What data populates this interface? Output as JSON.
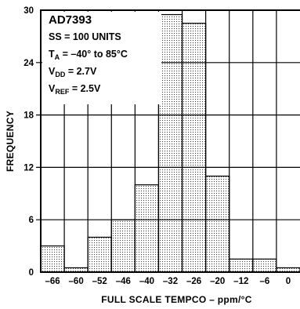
{
  "chart_data": {
    "type": "bar",
    "ylabel": "FREQUENCY",
    "xlabel": "FULL SCALE TEMPCO – ppm/°C",
    "ylim": [
      0,
      30
    ],
    "yticks": [
      0,
      6,
      12,
      18,
      24,
      30
    ],
    "xticks": [
      "–66",
      "–60",
      "–52",
      "–46",
      "–40",
      "–32",
      "–26",
      "–20",
      "–12",
      "–6",
      "0"
    ],
    "values": [
      3,
      0.5,
      4,
      6,
      10,
      29.5,
      28.5,
      11,
      1.5,
      1.5,
      0.5
    ],
    "grid": true,
    "legend": {
      "title": "AD7393",
      "lines": [
        {
          "text": "SS = 100 UNITS"
        },
        {
          "pre": "T",
          "sub": "A",
          "post": " = –40° to 85°C"
        },
        {
          "pre": "V",
          "sub": "DD",
          "post": " = 2.7V"
        },
        {
          "pre": "V",
          "sub": "REF",
          "post": " = 2.5V"
        }
      ]
    }
  }
}
